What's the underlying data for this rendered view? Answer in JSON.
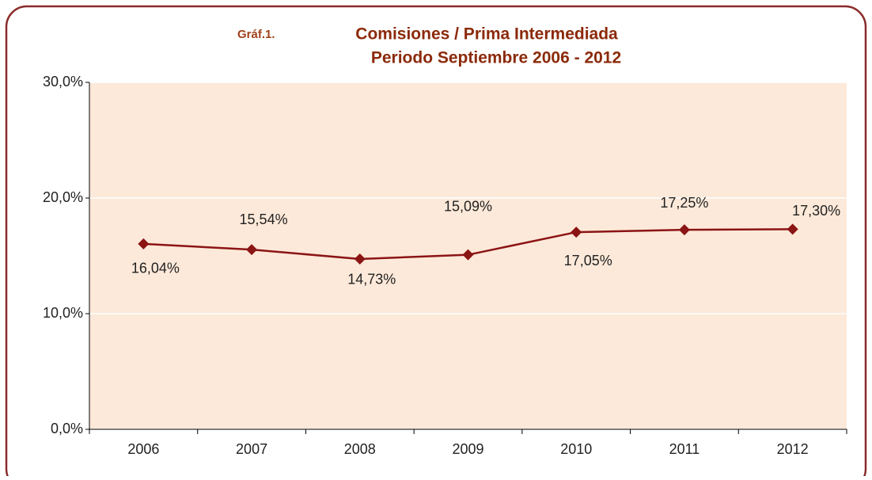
{
  "chart_data": {
    "type": "line",
    "title": "Comisiones / Prima Intermediada",
    "subtitle": "Periodo Septiembre 2006 - 2012",
    "label": "Gráf.1.",
    "categories": [
      "2006",
      "2007",
      "2008",
      "2009",
      "2010",
      "2011",
      "2012"
    ],
    "series": [
      {
        "name": "Comisiones / Prima Intermediada",
        "color": "#8b1414",
        "values": [
          16.04,
          15.54,
          14.73,
          15.09,
          17.05,
          17.25,
          17.3
        ],
        "value_labels": [
          "16,04%",
          "15,54%",
          "14,73%",
          "15,09%",
          "17,05%",
          "17,25%",
          "17,30%"
        ]
      }
    ],
    "ylim": [
      0,
      30
    ],
    "yticks": [
      {
        "value": 0,
        "label": "0,0%"
      },
      {
        "value": 10,
        "label": "10,0%"
      },
      {
        "value": 20,
        "label": "20,0%"
      },
      {
        "value": 30,
        "label": "30,0%"
      }
    ],
    "grid": true
  }
}
